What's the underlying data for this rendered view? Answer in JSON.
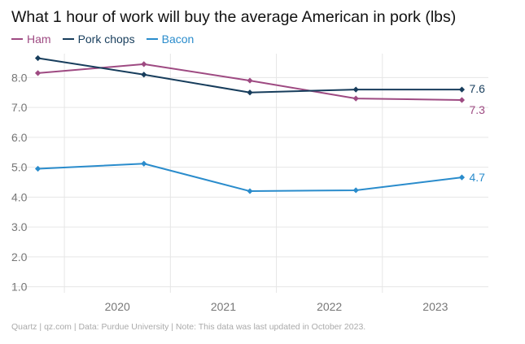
{
  "chart_data": {
    "type": "line",
    "title": "What 1 hour of work will buy the average American in pork (lbs)",
    "xlabel": "",
    "ylabel": "",
    "x_ticks": [
      "2020",
      "2021",
      "2022",
      "2023"
    ],
    "y_ticks": [
      "1.0",
      "2.0",
      "3.0",
      "4.0",
      "5.0",
      "6.0",
      "7.0",
      "8.0"
    ],
    "ylim": [
      0.8,
      8.8
    ],
    "x": [
      2019.75,
      2020.75,
      2021.75,
      2022.75,
      2023.75
    ],
    "xlim": [
      2019.5,
      2024.0
    ],
    "series": [
      {
        "name": "Ham",
        "color": "#9e4a82",
        "values": [
          8.15,
          8.45,
          7.9,
          7.3,
          7.25
        ],
        "end_label": "7.3"
      },
      {
        "name": "Pork chops",
        "color": "#173d5c",
        "values": [
          8.65,
          8.1,
          7.5,
          7.6,
          7.6
        ],
        "end_label": "7.6"
      },
      {
        "name": "Bacon",
        "color": "#2a8ccc",
        "values": [
          4.95,
          5.12,
          4.2,
          4.23,
          4.66
        ],
        "end_label": "4.7"
      }
    ]
  },
  "footer": "Quartz | qz.com | Data: Purdue University | Note: This data was last updated in October 2023."
}
